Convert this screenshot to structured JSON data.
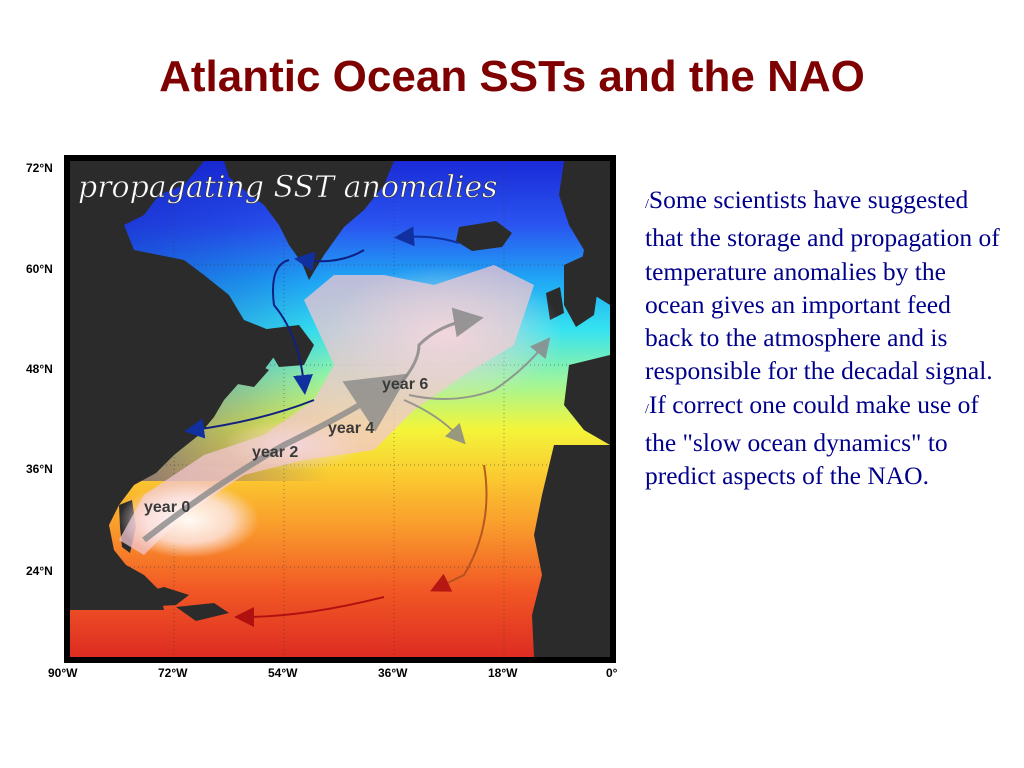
{
  "slide": {
    "title": "Atlantic Ocean SSTs and the NAO"
  },
  "map": {
    "caption": "propagating SST anomalies",
    "lat_labels": [
      "72°N",
      "60°N",
      "48°N",
      "36°N",
      "24°N"
    ],
    "lon_labels": [
      "90°W",
      "72°W",
      "54°W",
      "36°W",
      "18°W",
      "0°"
    ],
    "year_labels": [
      "year 0",
      "year 2",
      "year 4",
      "year 6"
    ]
  },
  "text": {
    "bullet_glyph": "/",
    "paragraphs": [
      "Some scientists have suggested that the storage and propagation of temperature anomalies by the ocean gives an important feed back to the atmosphere and is responsible for the decadal signal.",
      "If correct one could make use of the \"slow ocean dynamics\" to predict aspects of the NAO."
    ]
  }
}
